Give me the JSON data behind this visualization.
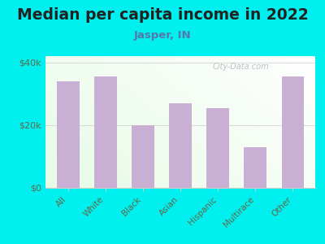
{
  "title": "Median per capita income in 2022",
  "subtitle": "Jasper, IN",
  "categories": [
    "All",
    "White",
    "Black",
    "Asian",
    "Hispanic",
    "Multirace",
    "Other"
  ],
  "values": [
    34000,
    35500,
    20000,
    27000,
    25500,
    13000,
    35500
  ],
  "bar_color": "#c9afd4",
  "background_outer": "#00f0f0",
  "title_color": "#222222",
  "subtitle_color": "#5577aa",
  "tick_color": "#666644",
  "ytick_labels": [
    "$0",
    "$20k",
    "$40k"
  ],
  "ytick_values": [
    0,
    20000,
    40000
  ],
  "ylim": [
    0,
    42000
  ],
  "title_fontsize": 13.5,
  "subtitle_fontsize": 9.5,
  "tick_fontsize": 8,
  "xlabel_fontsize": 7.5,
  "watermark": "City-Data.com"
}
